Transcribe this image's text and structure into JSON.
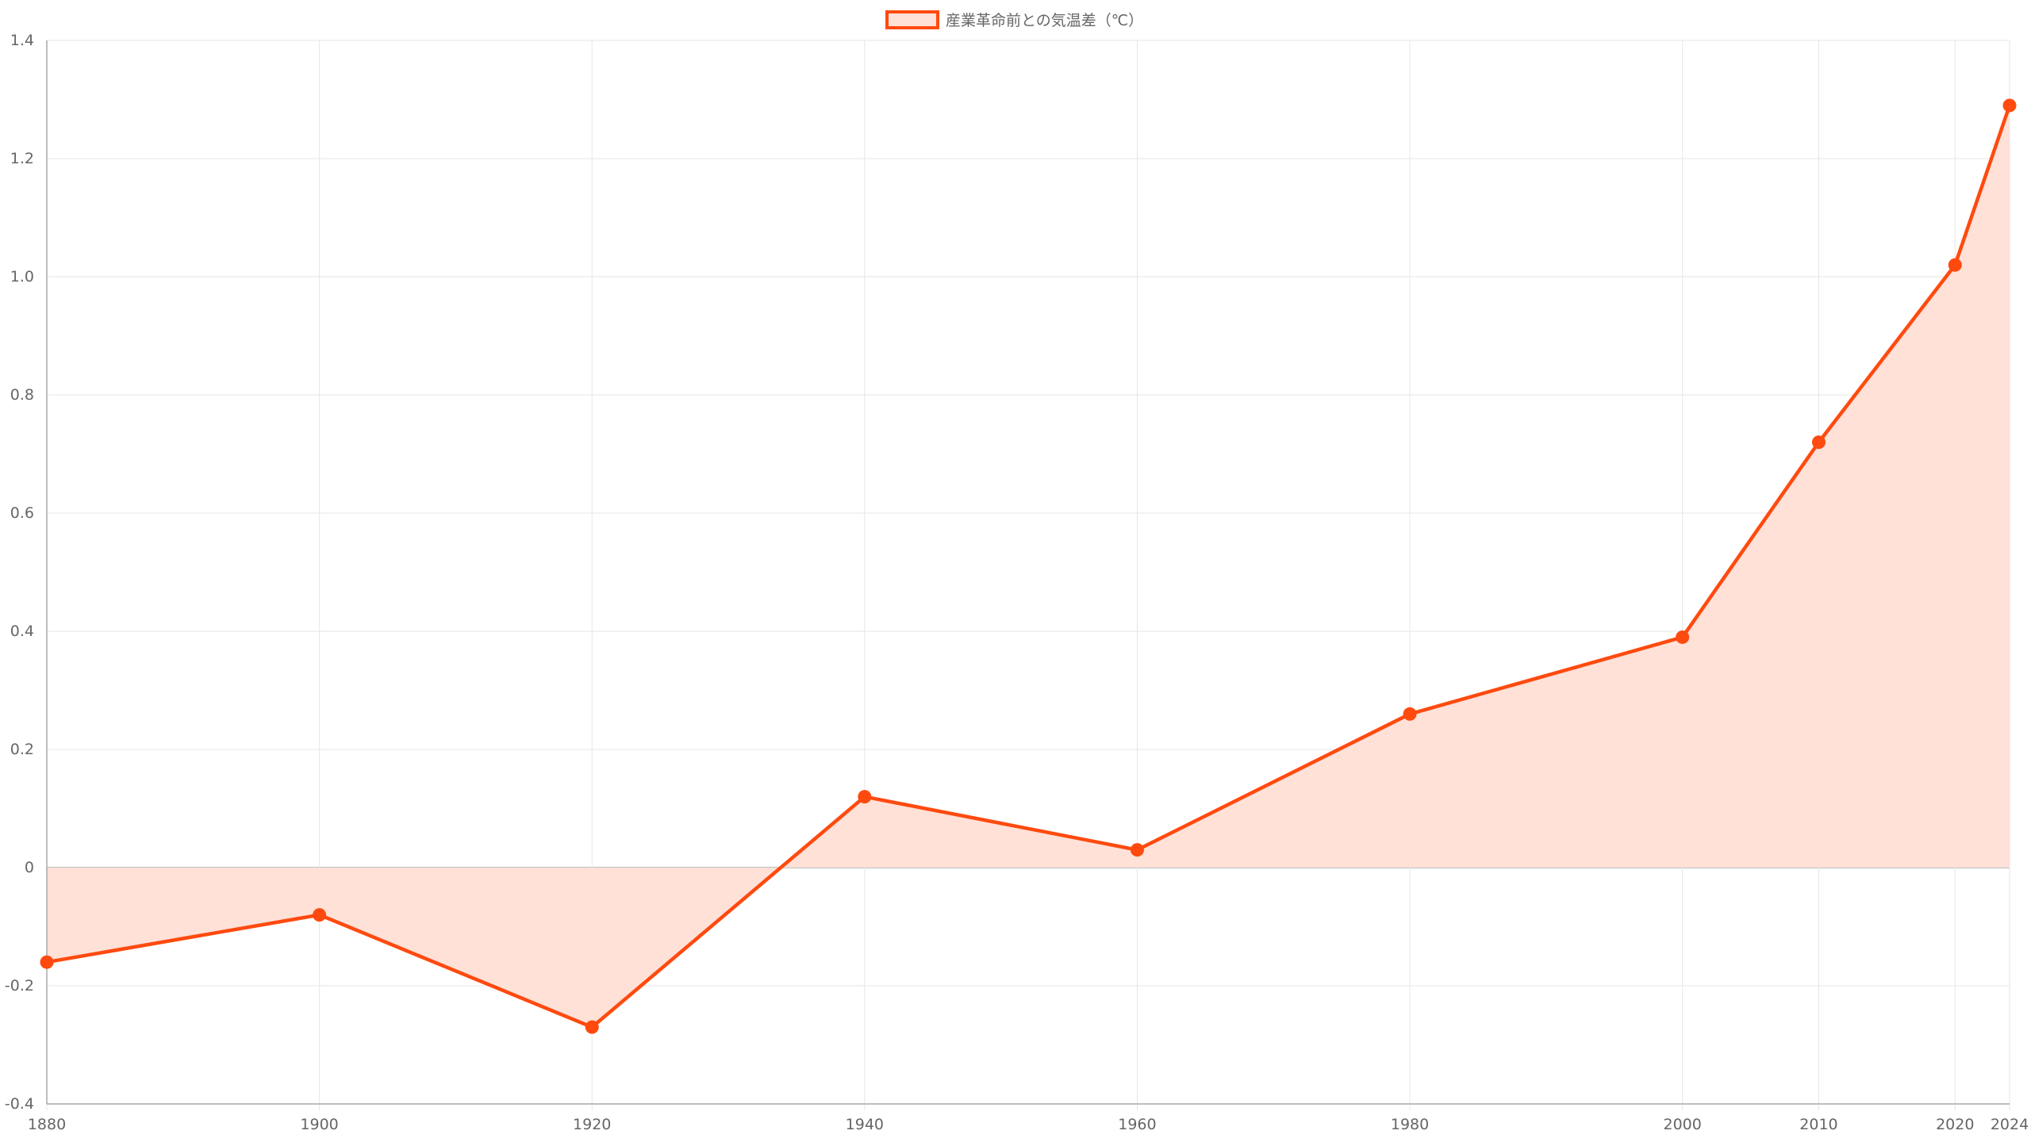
{
  "chart_data": {
    "type": "area",
    "x": [
      "1880",
      "1900",
      "1920",
      "1940",
      "1960",
      "1980",
      "2000",
      "2010",
      "2020",
      "2024"
    ],
    "series": [
      {
        "name": "産業革命前との気温差（℃）",
        "values": [
          -0.16,
          -0.08,
          -0.27,
          0.12,
          0.03,
          0.26,
          0.39,
          0.72,
          1.02,
          1.29
        ]
      }
    ],
    "title": "",
    "xlabel": "",
    "ylabel": "",
    "ylim": [
      -0.4,
      1.4
    ],
    "yticks": [
      -0.4,
      -0.2,
      0,
      0.2,
      0.4,
      0.6,
      0.8,
      1.0,
      1.2,
      1.4
    ],
    "ytick_labels": [
      "-0.4",
      "-0.2",
      "0",
      "0.2",
      "0.4",
      "0.6",
      "0.8",
      "1.0",
      "1.2",
      "1.4"
    ],
    "grid": true,
    "legend_position": "top-center",
    "colors": {
      "line": "#ff4a0f",
      "fill": "#ffe1d8",
      "grid": "#e6e6e6",
      "axis": "#a8a8a8",
      "text": "#666666"
    }
  }
}
